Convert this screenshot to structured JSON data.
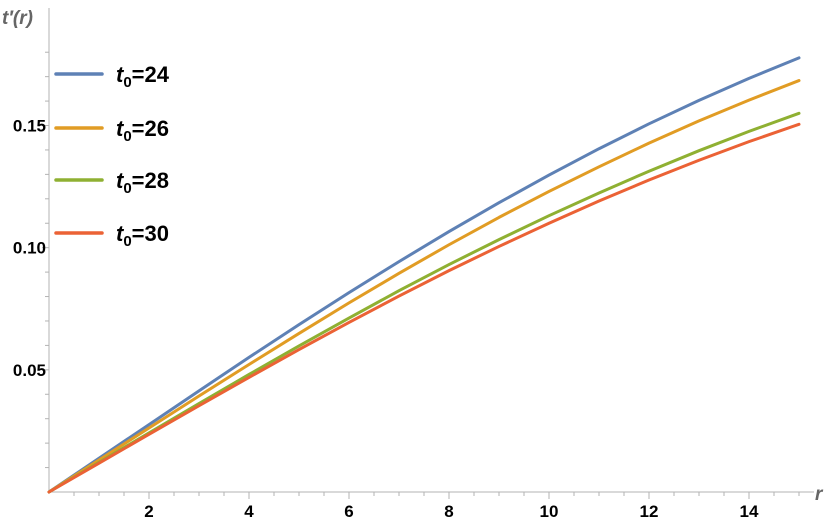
{
  "chart_data": {
    "type": "line",
    "xlabel": "r",
    "ylabel": "t′(r)",
    "xlim": [
      0,
      15.3
    ],
    "ylim": [
      0,
      0.185
    ],
    "x_ticks": [
      2,
      4,
      6,
      8,
      10,
      12,
      14
    ],
    "x_tick_labels": [
      "2",
      "4",
      "6",
      "8",
      "10",
      "12",
      "14"
    ],
    "y_ticks": [
      0.05,
      0.1,
      0.15
    ],
    "y_tick_labels": [
      "0.05",
      "0.10",
      "0.15"
    ],
    "legend_position": "top-left",
    "x": [
      0,
      1,
      2,
      3,
      4,
      5,
      6,
      7,
      8,
      9,
      10,
      11,
      12,
      13,
      14,
      15
    ],
    "series": [
      {
        "name": "t0=24",
        "legend_var": "t",
        "legend_sub": "0",
        "legend_value": "=24",
        "color": "#5e81b5",
        "values": [
          0,
          0.0138,
          0.0276,
          0.0414,
          0.0551,
          0.0685,
          0.0816,
          0.0943,
          0.1066,
          0.1184,
          0.1297,
          0.1405,
          0.1507,
          0.1603,
          0.1693,
          0.1777
        ]
      },
      {
        "name": "t0=26",
        "legend_var": "t",
        "legend_sub": "0",
        "legend_value": "=26",
        "color": "#e19c24",
        "values": [
          0,
          0.0131,
          0.0262,
          0.0393,
          0.0522,
          0.0649,
          0.0774,
          0.0895,
          0.1012,
          0.1124,
          0.123,
          0.1331,
          0.1428,
          0.1519,
          0.1604,
          0.1684
        ]
      },
      {
        "name": "t0=28",
        "legend_var": "t",
        "legend_sub": "0",
        "legend_value": "=28",
        "color": "#8fb032",
        "values": [
          0,
          0.0121,
          0.0242,
          0.0362,
          0.0481,
          0.0598,
          0.0712,
          0.0824,
          0.0931,
          0.1033,
          0.1131,
          0.1224,
          0.1313,
          0.1397,
          0.1476,
          0.155
        ]
      },
      {
        "name": "t0=30",
        "legend_var": "t",
        "legend_sub": "0",
        "legend_value": "=30",
        "color": "#eb6235",
        "values": [
          0,
          0.0118,
          0.0236,
          0.0353,
          0.0469,
          0.0583,
          0.0694,
          0.0802,
          0.0906,
          0.1005,
          0.11,
          0.1191,
          0.1277,
          0.1358,
          0.1434,
          0.1505
        ]
      }
    ]
  }
}
